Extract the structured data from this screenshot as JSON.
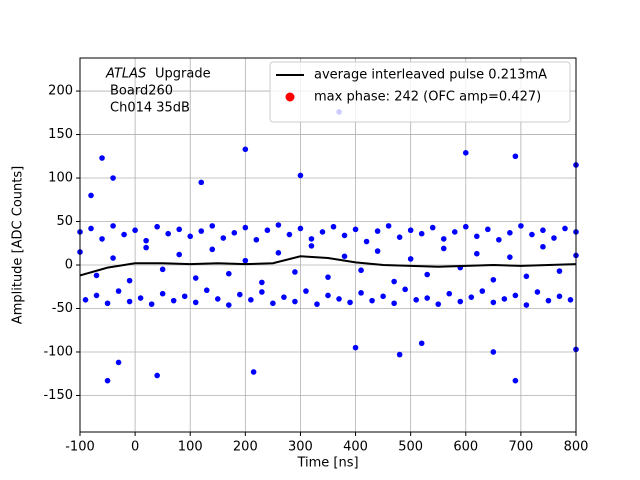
{
  "chart_data": {
    "type": "scatter",
    "xlabel": "Time [ns]",
    "ylabel": "Amplitude [ADC Counts]",
    "annotation": {
      "experiment": "ATLAS",
      "text": "Upgrade",
      "lines": [
        "Board260",
        "Ch014 35dB"
      ]
    },
    "xlim": [
      -100,
      800
    ],
    "xticks": [
      -100,
      0,
      100,
      200,
      300,
      400,
      500,
      600,
      700,
      800
    ],
    "ylim": [
      -192,
      238
    ],
    "yticks": [
      -150,
      -100,
      -50,
      0,
      50,
      100,
      150,
      200
    ],
    "grid": true,
    "legend": "upper right",
    "series": [
      {
        "type": "scatter",
        "color": "#0000ff",
        "x": [
          -100,
          -80,
          -60,
          -40,
          -20,
          0,
          20,
          40,
          60,
          80,
          100,
          120,
          140,
          160,
          180,
          200,
          220,
          240,
          260,
          280,
          300,
          320,
          340,
          360,
          380,
          400,
          420,
          440,
          460,
          480,
          500,
          520,
          540,
          560,
          580,
          600,
          620,
          640,
          660,
          680,
          700,
          720,
          740,
          760,
          780,
          800
        ],
        "values": [
          38,
          42,
          30,
          45,
          35,
          40,
          28,
          44,
          36,
          41,
          33,
          39,
          45,
          31,
          37,
          43,
          29,
          40,
          46,
          35,
          42,
          30,
          38,
          44,
          34,
          41,
          27,
          39,
          45,
          32,
          40,
          36,
          43,
          30,
          38,
          44,
          33,
          41,
          29,
          37,
          45,
          35,
          40,
          31,
          42,
          38
        ]
      },
      {
        "type": "scatter",
        "color": "#0000ff",
        "x": [
          -90,
          -70,
          -50,
          -30,
          -10,
          10,
          30,
          50,
          70,
          90,
          110,
          130,
          150,
          170,
          190,
          210,
          230,
          250,
          270,
          290,
          310,
          330,
          350,
          370,
          390,
          410,
          430,
          450,
          470,
          490,
          510,
          530,
          550,
          570,
          590,
          610,
          630,
          650,
          670,
          690,
          710,
          730,
          750,
          770,
          790
        ],
        "values": [
          -40,
          -35,
          -44,
          -30,
          -42,
          -38,
          -45,
          -33,
          -41,
          -36,
          -43,
          -29,
          -39,
          -46,
          -34,
          -40,
          -31,
          -44,
          -37,
          -42,
          -30,
          -45,
          -35,
          -39,
          -43,
          -32,
          -41,
          -36,
          -44,
          -28,
          -40,
          -38,
          -45,
          -33,
          -42,
          -37,
          -30,
          -43,
          -39,
          -35,
          -46,
          -31,
          -41,
          -36,
          -40
        ]
      },
      {
        "type": "scatter",
        "color": "#0000ff",
        "x": [
          -100,
          -70,
          -40,
          -10,
          20,
          50,
          80,
          110,
          140,
          170,
          200,
          230,
          260,
          290,
          320,
          350,
          380,
          410,
          440,
          470,
          500,
          530,
          560,
          590,
          620,
          650,
          680,
          710,
          740,
          770,
          800
        ],
        "values": [
          15,
          -12,
          8,
          -18,
          20,
          -5,
          12,
          -15,
          18,
          -10,
          5,
          -20,
          14,
          -8,
          22,
          -14,
          10,
          -6,
          16,
          -19,
          7,
          -11,
          19,
          -3,
          13,
          -17,
          9,
          -13,
          21,
          -7,
          11
        ]
      },
      {
        "type": "scatter",
        "color": "#0000ff",
        "x": [
          -60,
          -40,
          -80,
          200,
          300,
          370,
          600,
          690,
          800,
          -30,
          -50,
          40,
          215,
          690,
          800,
          480,
          120,
          520,
          400,
          650
        ],
        "values": [
          123,
          100,
          80,
          133,
          103,
          176,
          129,
          125,
          115,
          -112,
          -133,
          -127,
          -123,
          -133,
          -97,
          -103,
          95,
          -90,
          -95,
          -100
        ]
      },
      {
        "type": "line",
        "name": "average interleaved pulse 0.213mA",
        "color": "#000000",
        "x": [
          -100,
          -50,
          0,
          50,
          100,
          150,
          200,
          250,
          300,
          350,
          400,
          450,
          500,
          550,
          600,
          650,
          700,
          750,
          800
        ],
        "values": [
          -12,
          -3,
          2,
          2,
          1,
          2,
          1,
          2,
          10,
          8,
          3,
          0,
          -1,
          -2,
          -1,
          0,
          -1,
          0,
          1
        ]
      },
      {
        "type": "marker",
        "name": "max phase: 242 (OFC amp=0.427)",
        "color": "#ff0000"
      }
    ]
  }
}
